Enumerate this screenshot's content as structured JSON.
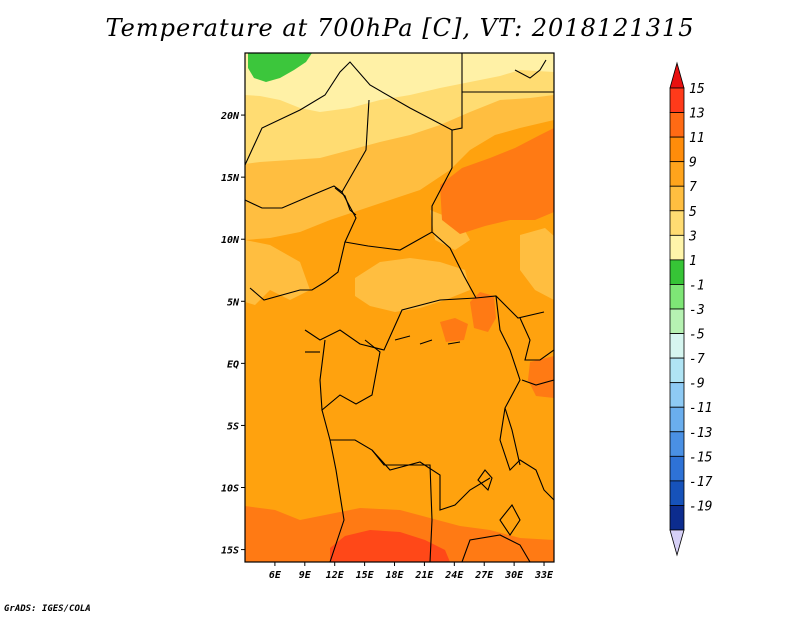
{
  "title": "Temperature at 700hPa [C], VT: 2018121315",
  "credit": "GrADS: IGES/COLA",
  "map": {
    "lon_range": [
      3,
      34
    ],
    "lat_range": [
      -16,
      25
    ],
    "lon_ticks": [
      {
        "value": 6,
        "label": "6E"
      },
      {
        "value": 9,
        "label": "9E"
      },
      {
        "value": 12,
        "label": "12E"
      },
      {
        "value": 15,
        "label": "15E"
      },
      {
        "value": 18,
        "label": "18E"
      },
      {
        "value": 21,
        "label": "21E"
      },
      {
        "value": 24,
        "label": "24E"
      },
      {
        "value": 27,
        "label": "27E"
      },
      {
        "value": 30,
        "label": "30E"
      },
      {
        "value": 33,
        "label": "33E"
      }
    ],
    "lat_ticks": [
      {
        "value": 20,
        "label": "20N"
      },
      {
        "value": 15,
        "label": "15N"
      },
      {
        "value": 10,
        "label": "10N"
      },
      {
        "value": 5,
        "label": "5N"
      },
      {
        "value": 0,
        "label": "EQ"
      },
      {
        "value": -5,
        "label": "5S"
      },
      {
        "value": -10,
        "label": "10S"
      },
      {
        "value": -15,
        "label": "15S"
      }
    ]
  },
  "colorbar": {
    "levels": [
      "15",
      "13",
      "11",
      "9",
      "7",
      "5",
      "3",
      "1",
      "-1",
      "-3",
      "-5",
      "-7",
      "-9",
      "-11",
      "-13",
      "-15",
      "-17",
      "-19"
    ],
    "colors": [
      "#ff3a1a",
      "#ff6a14",
      "#ff8c0a",
      "#ffa41c",
      "#ffbe40",
      "#ffdc72",
      "#fff5aa",
      "#36c436",
      "#7ee676",
      "#b6f2b2",
      "#d6f6f0",
      "#b0e4f4",
      "#8ecaf4",
      "#6aaeee",
      "#4a90e4",
      "#2e72d6",
      "#1652ba",
      "#0c2c8e"
    ],
    "top_arrow_color": "#e81010",
    "bottom_arrow_color": "#d6d0f6"
  },
  "field_colors": {
    "lt3": "#3cc63c",
    "3to5": "#fff1a6",
    "5to7": "#ffdc72",
    "7to9": "#ffbe40",
    "9to11": "#ffa20e",
    "11to13": "#ff7a14",
    "13to15": "#ff4818"
  }
}
